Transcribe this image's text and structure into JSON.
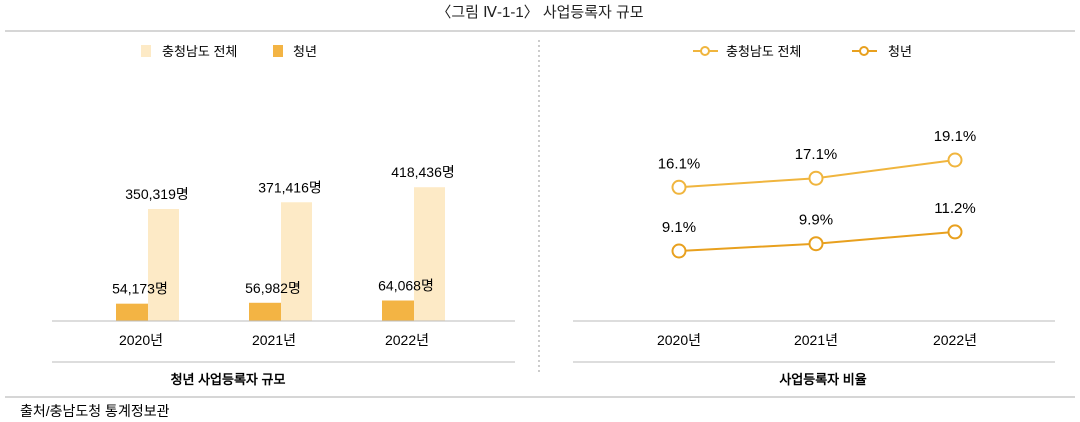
{
  "title": "〈그림 Ⅳ-1-1〉 사업등록자 규모",
  "source": "출처/충남도청 통계정보관",
  "colors": {
    "bar_total": "#fdeac6",
    "bar_youth": "#f3b444",
    "line_total": "#f0b53e",
    "line_youth": "#e8a01e"
  },
  "chart_data": [
    {
      "type": "bar",
      "title": "청년 사업등록자 규모",
      "categories": [
        "2020년",
        "2021년",
        "2022년"
      ],
      "series": [
        {
          "name": "충청남도 전체",
          "values": [
            350319,
            371416,
            418436
          ],
          "labels": [
            "350,319명",
            "371,416명",
            "418,436명"
          ]
        },
        {
          "name": "청년",
          "values": [
            54173,
            56982,
            64068
          ],
          "labels": [
            "54,173명",
            "56,982명",
            "64,068명"
          ]
        }
      ],
      "legend": "top-center",
      "grid": false
    },
    {
      "type": "line",
      "title": "사업등록자 비율",
      "categories": [
        "2020년",
        "2021년",
        "2022년"
      ],
      "series": [
        {
          "name": "충청남도 전체",
          "values": [
            16.1,
            17.1,
            19.1
          ],
          "labels": [
            "16.1%",
            "17.1%",
            "19.1%"
          ]
        },
        {
          "name": "청년",
          "values": [
            9.1,
            9.9,
            11.2
          ],
          "labels": [
            "9.1%",
            "9.9%",
            "11.2%"
          ]
        }
      ],
      "legend": "top-center",
      "grid": false
    }
  ]
}
